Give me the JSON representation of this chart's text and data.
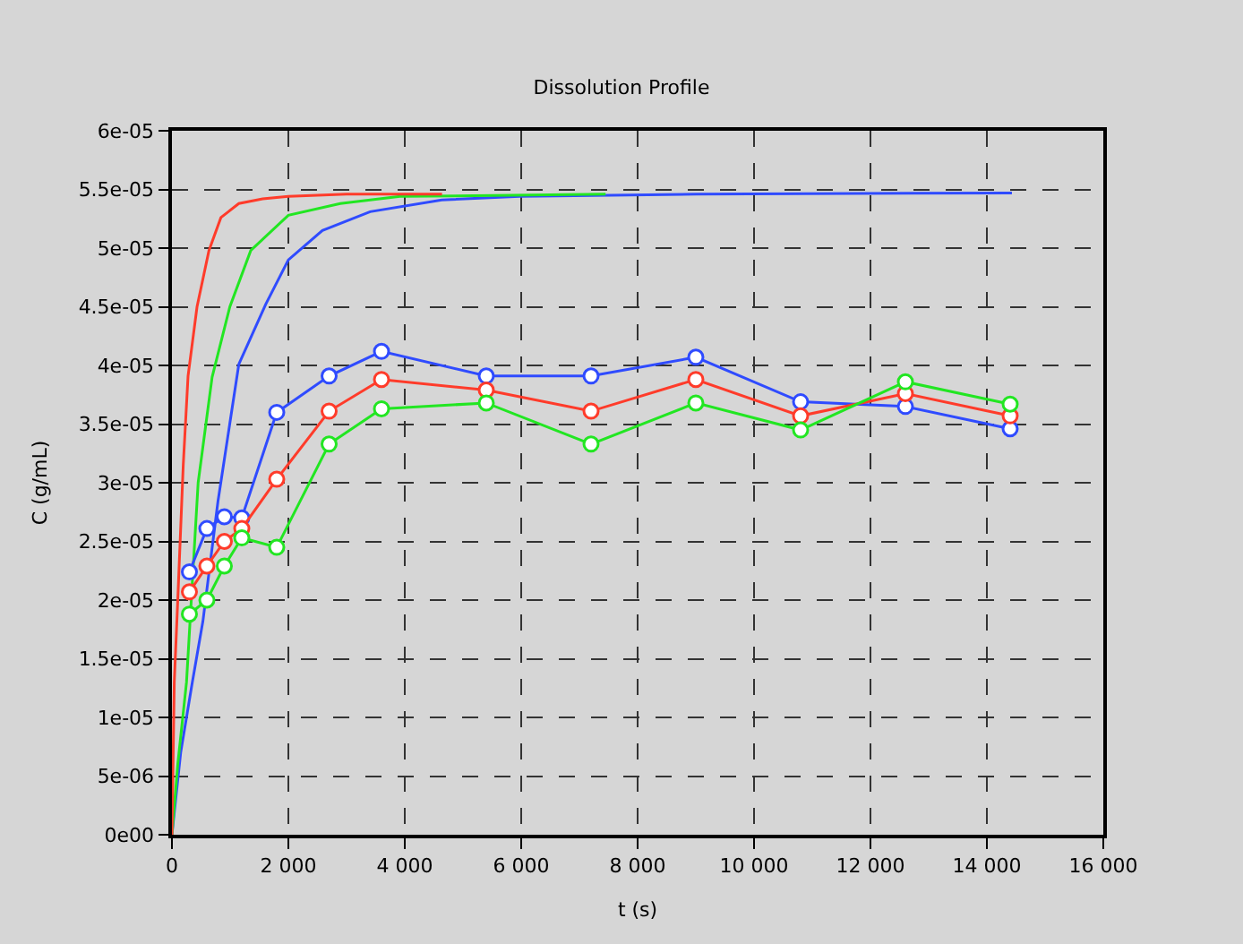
{
  "chart_data": {
    "type": "line",
    "title": "Dissolution Profile",
    "xlabel": "t (s)",
    "ylabel": "C (g/mL)",
    "xlim": [
      0,
      16000
    ],
    "ylim": [
      0,
      6e-05
    ],
    "xticks": [
      0,
      {
        "value": 2000,
        "label": "2 000"
      },
      {
        "value": 4000,
        "label": "4 000"
      },
      {
        "value": 6000,
        "label": "6 000"
      },
      {
        "value": 8000,
        "label": "8 000"
      },
      {
        "value": 10000,
        "label": "10 000"
      },
      {
        "value": 12000,
        "label": "12 000"
      },
      {
        "value": 14000,
        "label": "14 000"
      },
      {
        "value": 16000,
        "label": "16 000"
      }
    ],
    "yticks": [
      {
        "value": 0,
        "label": "0e00"
      },
      {
        "value": 5e-06,
        "label": "5e-06"
      },
      {
        "value": 1e-05,
        "label": "1e-05"
      },
      {
        "value": 1.5e-05,
        "label": "1.5e-05"
      },
      {
        "value": 2e-05,
        "label": "2e-05"
      },
      {
        "value": 2.5e-05,
        "label": "2.5e-05"
      },
      {
        "value": 3e-05,
        "label": "3e-05"
      },
      {
        "value": 3.5e-05,
        "label": "3.5e-05"
      },
      {
        "value": 4e-05,
        "label": "4e-05"
      },
      {
        "value": 4.5e-05,
        "label": "4.5e-05"
      },
      {
        "value": 5e-05,
        "label": "5e-05"
      },
      {
        "value": 5.5e-05,
        "label": "5.5e-05"
      },
      {
        "value": 6e-05,
        "label": "6e-05"
      }
    ],
    "grid": true,
    "series": [
      {
        "color": "#2f4bff",
        "marker": "none",
        "x": [
          0,
          150,
          350,
          532,
          790,
          1149,
          1610,
          2000,
          2585,
          3405,
          4636,
          5970,
          9000,
          14430
        ],
        "values": [
          0,
          7e-06,
          1.3e-05,
          1.82e-05,
          2.84e-05,
          4.01e-05,
          4.52e-05,
          4.9e-05,
          5.15e-05,
          5.31e-05,
          5.41e-05,
          5.44e-05,
          5.46e-05,
          5.47e-05
        ]
      },
      {
        "color": "#22e622",
        "marker": "none",
        "x": [
          0,
          100,
          250,
          450,
          690,
          995,
          1354,
          2000,
          2892,
          3918,
          7450
        ],
        "values": [
          0,
          6e-06,
          1.3e-05,
          3e-05,
          3.9e-05,
          4.5e-05,
          4.98e-05,
          5.28e-05,
          5.38e-05,
          5.44e-05,
          5.46e-05
        ]
      },
      {
        "color": "#ff3b2a",
        "marker": "none",
        "x": [
          0,
          40,
          100,
          194,
          277,
          431,
          636,
          841,
          1149,
          1559,
          2000,
          3000,
          4640
        ],
        "values": [
          0,
          1.3e-05,
          2e-05,
          3.15e-05,
          3.91e-05,
          4.5e-05,
          4.98e-05,
          5.26e-05,
          5.38e-05,
          5.42e-05,
          5.44e-05,
          5.46e-05,
          5.46e-05
        ]
      },
      {
        "color": "#2f4bff",
        "marker": "circle",
        "x": [
          300,
          600,
          900,
          1200,
          1800,
          2700,
          3600,
          5400,
          7200,
          9000,
          10800,
          12600,
          14400
        ],
        "values": [
          2.24e-05,
          2.61e-05,
          2.71e-05,
          2.7e-05,
          3.6e-05,
          3.91e-05,
          4.12e-05,
          3.91e-05,
          3.91e-05,
          4.07e-05,
          3.69e-05,
          3.65e-05,
          3.46e-05
        ]
      },
      {
        "color": "#ff3b2a",
        "marker": "circle",
        "x": [
          300,
          600,
          900,
          1200,
          1800,
          2700,
          3600,
          5400,
          7200,
          9000,
          10800,
          12600,
          14400
        ],
        "values": [
          2.07e-05,
          2.29e-05,
          2.5e-05,
          2.61e-05,
          3.03e-05,
          3.61e-05,
          3.88e-05,
          3.79e-05,
          3.61e-05,
          3.88e-05,
          3.57e-05,
          3.76e-05,
          3.57e-05
        ]
      },
      {
        "color": "#22e622",
        "marker": "circle",
        "x": [
          300,
          600,
          900,
          1200,
          1800,
          2700,
          3600,
          5400,
          7200,
          9000,
          10800,
          12600,
          14400
        ],
        "values": [
          1.88e-05,
          2e-05,
          2.29e-05,
          2.53e-05,
          2.45e-05,
          3.33e-05,
          3.63e-05,
          3.68e-05,
          3.33e-05,
          3.68e-05,
          3.45e-05,
          3.86e-05,
          3.67e-05
        ]
      }
    ]
  }
}
